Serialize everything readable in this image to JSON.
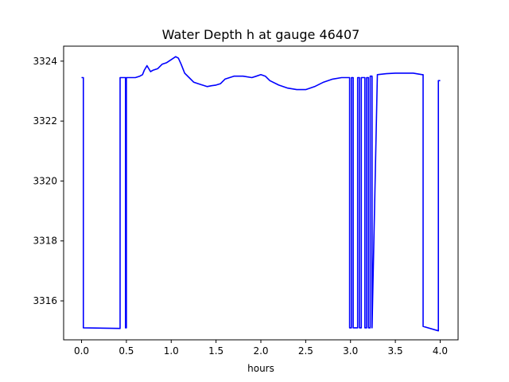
{
  "chart_data": {
    "type": "line",
    "title": "Water Depth h at gauge 46407",
    "xlabel": "hours",
    "ylabel": "",
    "xlim": [
      -0.2,
      4.2
    ],
    "ylim": [
      3314.7,
      3324.5
    ],
    "xticks": [
      0.0,
      0.5,
      1.0,
      1.5,
      2.0,
      2.5,
      3.0,
      3.5,
      4.0
    ],
    "xtick_labels": [
      "0.0",
      "0.5",
      "1.0",
      "1.5",
      "2.0",
      "2.5",
      "3.0",
      "3.5",
      "4.0"
    ],
    "yticks": [
      3316,
      3318,
      3320,
      3322,
      3324
    ],
    "ytick_labels": [
      "3316",
      "3318",
      "3320",
      "3322",
      "3324"
    ],
    "grid": false,
    "series": [
      {
        "color": "#0000ff",
        "x": [
          0.0,
          0.02,
          0.02,
          0.43,
          0.43,
          0.49,
          0.49,
          0.5,
          0.5,
          0.6,
          0.65,
          0.68,
          0.7,
          0.73,
          0.77,
          0.8,
          0.85,
          0.9,
          0.95,
          1.0,
          1.05,
          1.08,
          1.11,
          1.15,
          1.2,
          1.25,
          1.3,
          1.4,
          1.45,
          1.5,
          1.55,
          1.6,
          1.7,
          1.8,
          1.9,
          1.95,
          2.0,
          2.05,
          2.1,
          2.2,
          2.3,
          2.4,
          2.5,
          2.6,
          2.7,
          2.8,
          2.9,
          2.97,
          2.99,
          2.99,
          3.01,
          3.01,
          3.03,
          3.03,
          3.08,
          3.08,
          3.1,
          3.1,
          3.12,
          3.12,
          3.16,
          3.16,
          3.18,
          3.18,
          3.2,
          3.2,
          3.22,
          3.22,
          3.24,
          3.24,
          3.3,
          3.4,
          3.5,
          3.6,
          3.7,
          3.8,
          3.81,
          3.81,
          3.98,
          3.98,
          4.0
        ],
        "y": [
          3323.45,
          3323.45,
          3315.1,
          3315.08,
          3323.45,
          3323.45,
          3315.1,
          3315.1,
          3323.45,
          3323.45,
          3323.5,
          3323.55,
          3323.7,
          3323.85,
          3323.65,
          3323.7,
          3323.75,
          3323.9,
          3323.95,
          3324.05,
          3324.15,
          3324.1,
          3323.9,
          3323.6,
          3323.45,
          3323.3,
          3323.25,
          3323.15,
          3323.18,
          3323.2,
          3323.25,
          3323.4,
          3323.5,
          3323.5,
          3323.45,
          3323.5,
          3323.55,
          3323.5,
          3323.35,
          3323.2,
          3323.1,
          3323.05,
          3323.05,
          3323.15,
          3323.3,
          3323.4,
          3323.45,
          3323.45,
          3323.45,
          3315.1,
          3315.1,
          3323.45,
          3323.45,
          3315.1,
          3315.1,
          3323.45,
          3323.45,
          3315.1,
          3315.1,
          3323.45,
          3323.45,
          3315.1,
          3315.1,
          3323.45,
          3323.45,
          3315.1,
          3315.1,
          3323.5,
          3323.5,
          3315.1,
          3323.55,
          3323.58,
          3323.6,
          3323.6,
          3323.6,
          3323.55,
          3323.55,
          3315.15,
          3315.0,
          3323.35,
          3323.35
        ]
      }
    ]
  }
}
